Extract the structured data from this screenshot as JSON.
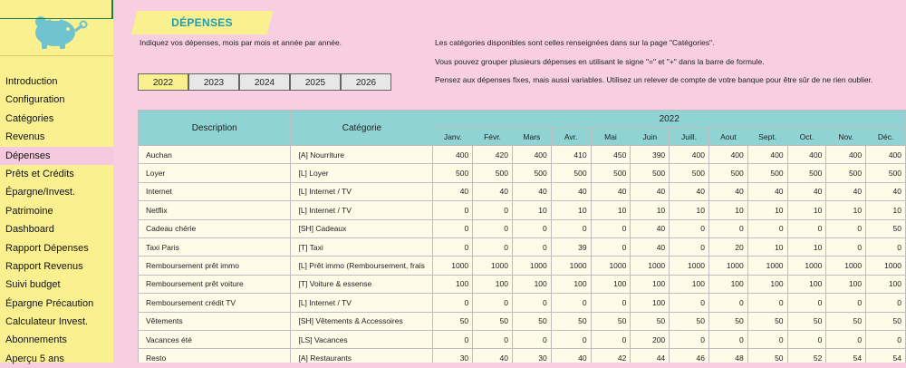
{
  "sidebar": {
    "items": [
      "Introduction",
      "Configuration",
      "Catégories",
      "Revenus",
      "Dépenses",
      "Prêts et Crédits",
      "Épargne/Invest.",
      "Patrimoine",
      "Dashboard",
      "Rapport Dépenses",
      "Rapport Revenus",
      "Suivi budget",
      "Épargne Précaution",
      "Calculateur Invest.",
      "Abonnements",
      "Aperçu 5 ans"
    ],
    "active_index": 4
  },
  "page": {
    "title": "DÉPENSES",
    "intro": "Indiquez vos dépenses, mois par mois et année par année.",
    "notes": [
      "Les catégories disponibles sont celles renseignées dans sur la page \"Catégories\".",
      "Vous pouvez grouper plusieurs dépenses en utilisant le signe \"=\" et \"+\" dans la barre de formule.",
      "Pensez aux dépenses fixes, mais aussi variables. Utilisez un relever de compte de votre banque pour être sûr de ne rien oublier."
    ]
  },
  "years": {
    "options": [
      "2022",
      "2023",
      "2024",
      "2025",
      "2026"
    ],
    "active": "2022"
  },
  "colors": {
    "sidebar": "#fbf08f",
    "background": "#f7cfe0",
    "header": "#8fd3d4",
    "title_text": "#1f9cb4",
    "cell": "#fffbe8"
  },
  "icons": {
    "logo": "piggy-bank-icon"
  },
  "table": {
    "headers": {
      "description": "Description",
      "category": "Catégorie",
      "year": "2022"
    },
    "months": [
      "Janv.",
      "Févr.",
      "Mars",
      "Avr.",
      "Mai",
      "Juin",
      "Juill.",
      "Aout",
      "Sept.",
      "Oct.",
      "Nov.",
      "Déc."
    ],
    "rows": [
      {
        "desc": "Auchan",
        "cat": "[A] Nourriture",
        "values": [
          "400",
          "420",
          "400",
          "410",
          "450",
          "390",
          "400",
          "400",
          "400",
          "400",
          "400",
          "400"
        ]
      },
      {
        "desc": "Loyer",
        "cat": "[L] Loyer",
        "values": [
          "500",
          "500",
          "500",
          "500",
          "500",
          "500",
          "500",
          "500",
          "500",
          "500",
          "500",
          "500"
        ]
      },
      {
        "desc": "Internet",
        "cat": "[L] Internet / TV",
        "values": [
          "40",
          "40",
          "40",
          "40",
          "40",
          "40",
          "40",
          "40",
          "40",
          "40",
          "40",
          "40"
        ]
      },
      {
        "desc": "Netflix",
        "cat": "[L] Internet / TV",
        "values": [
          "0",
          "0",
          "10",
          "10",
          "10",
          "10",
          "10",
          "10",
          "10",
          "10",
          "10",
          "10"
        ]
      },
      {
        "desc": "Cadeau chérie",
        "cat": "[SH] Cadeaux",
        "values": [
          "0",
          "0",
          "0",
          "0",
          "0",
          "40",
          "0",
          "0",
          "0",
          "0",
          "0",
          "50"
        ]
      },
      {
        "desc": "Taxi Paris",
        "cat": "[T] Taxi",
        "values": [
          "0",
          "0",
          "0",
          "39",
          "0",
          "40",
          "0",
          "20",
          "10",
          "10",
          "0",
          "0"
        ]
      },
      {
        "desc": "Remboursement prêt immo",
        "cat": "[L] Prêt immo (Remboursement, frais",
        "values": [
          "1000",
          "1000",
          "1000",
          "1000",
          "1000",
          "1000",
          "1000",
          "1000",
          "1000",
          "1000",
          "1000",
          "1000"
        ]
      },
      {
        "desc": "Remboursement prêt voiture",
        "cat": "[T] Voiture & essense",
        "values": [
          "100",
          "100",
          "100",
          "100",
          "100",
          "100",
          "100",
          "100",
          "100",
          "100",
          "100",
          "100"
        ]
      },
      {
        "desc": "Remboursement crédit TV",
        "cat": "[L] Internet / TV",
        "values": [
          "0",
          "0",
          "0",
          "0",
          "0",
          "100",
          "0",
          "0",
          "0",
          "0",
          "0",
          "0"
        ]
      },
      {
        "desc": "Vêtements",
        "cat": "[SH] Vêtements & Accessoires",
        "values": [
          "50",
          "50",
          "50",
          "50",
          "50",
          "50",
          "50",
          "50",
          "50",
          "50",
          "50",
          "50"
        ]
      },
      {
        "desc": "Vacances été",
        "cat": "[LS] Vacances",
        "values": [
          "0",
          "0",
          "0",
          "0",
          "0",
          "200",
          "0",
          "0",
          "0",
          "0",
          "0",
          "0"
        ]
      },
      {
        "desc": "Resto",
        "cat": "[A] Restaurants",
        "values": [
          "30",
          "40",
          "30",
          "40",
          "42",
          "44",
          "46",
          "48",
          "50",
          "52",
          "54",
          "54"
        ]
      }
    ]
  }
}
